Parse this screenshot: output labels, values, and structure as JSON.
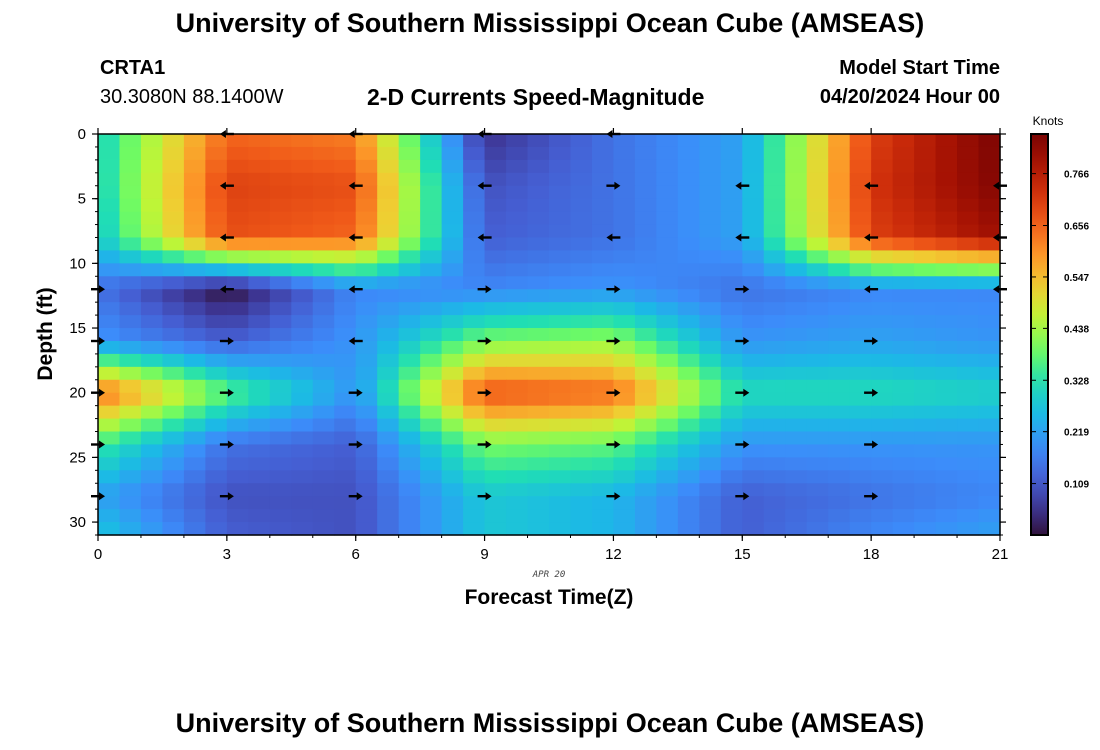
{
  "header": {
    "title": "University of Southern Mississippi Ocean Cube (AMSEAS)",
    "station": "CRTA1",
    "coords": "30.3080N  88.1400W",
    "plot_title": "2-D Currents Speed-Magnitude",
    "model_start_label": "Model Start Time",
    "model_start_value": "04/20/2024 Hour 00"
  },
  "footer": {
    "title": "University of Southern Mississippi Ocean Cube (AMSEAS)"
  },
  "chart_data": {
    "type": "heatmap",
    "title": "2-D Currents Speed-Magnitude",
    "xlabel": "Forecast Time(Z)",
    "ylabel": "Depth (ft)",
    "date_label": "APR 20",
    "x_ticks": [
      0,
      3,
      6,
      9,
      12,
      15,
      18,
      21
    ],
    "y_ticks": [
      0,
      5,
      10,
      15,
      20,
      25,
      30
    ],
    "xlim": [
      0,
      21
    ],
    "ylim": [
      0,
      31
    ],
    "colorbar": {
      "label": "Knots",
      "ticks": [
        "0.766",
        "0.656",
        "0.547",
        "0.438",
        "0.328",
        "0.219",
        "0.109"
      ],
      "tick_values": [
        0.766,
        0.656,
        0.547,
        0.438,
        0.328,
        0.219,
        0.109
      ],
      "range": [
        0,
        0.85
      ]
    },
    "time_hours": [
      0,
      3,
      6,
      9,
      12,
      15,
      18,
      21
    ],
    "depth_ft": [
      0,
      4,
      8,
      12,
      16,
      20,
      24,
      28,
      31
    ],
    "speed_knots": [
      [
        0.3,
        0.65,
        0.62,
        0.05,
        0.15,
        0.22,
        0.7,
        0.85
      ],
      [
        0.3,
        0.7,
        0.68,
        0.1,
        0.15,
        0.22,
        0.72,
        0.84
      ],
      [
        0.28,
        0.68,
        0.65,
        0.12,
        0.15,
        0.22,
        0.7,
        0.8
      ],
      [
        0.15,
        0.0,
        0.18,
        0.18,
        0.2,
        0.15,
        0.18,
        0.18
      ],
      [
        0.2,
        0.12,
        0.2,
        0.4,
        0.42,
        0.2,
        0.22,
        0.2
      ],
      [
        0.65,
        0.38,
        0.2,
        0.68,
        0.65,
        0.32,
        0.32,
        0.3
      ],
      [
        0.35,
        0.15,
        0.12,
        0.4,
        0.38,
        0.2,
        0.2,
        0.2
      ],
      [
        0.22,
        0.1,
        0.1,
        0.28,
        0.25,
        0.12,
        0.15,
        0.18
      ],
      [
        0.28,
        0.12,
        0.1,
        0.28,
        0.25,
        0.12,
        0.18,
        0.22
      ]
    ],
    "arrows": [
      {
        "t": 3,
        "d": 0,
        "dir": "W"
      },
      {
        "t": 6,
        "d": 0,
        "dir": "W"
      },
      {
        "t": 9,
        "d": 0,
        "dir": "W"
      },
      {
        "t": 12,
        "d": 0,
        "dir": "W"
      },
      {
        "t": 3,
        "d": 4,
        "dir": "W"
      },
      {
        "t": 6,
        "d": 4,
        "dir": "W"
      },
      {
        "t": 9,
        "d": 4,
        "dir": "W"
      },
      {
        "t": 12,
        "d": 4,
        "dir": "E"
      },
      {
        "t": 15,
        "d": 4,
        "dir": "W"
      },
      {
        "t": 18,
        "d": 4,
        "dir": "W"
      },
      {
        "t": 21,
        "d": 4,
        "dir": "W"
      },
      {
        "t": 3,
        "d": 8,
        "dir": "W"
      },
      {
        "t": 6,
        "d": 8,
        "dir": "W"
      },
      {
        "t": 9,
        "d": 8,
        "dir": "W"
      },
      {
        "t": 12,
        "d": 8,
        "dir": "W"
      },
      {
        "t": 15,
        "d": 8,
        "dir": "W"
      },
      {
        "t": 18,
        "d": 8,
        "dir": "W"
      },
      {
        "t": 21,
        "d": 8,
        "dir": "W"
      },
      {
        "t": 0,
        "d": 12,
        "dir": "E"
      },
      {
        "t": 3,
        "d": 12,
        "dir": "W"
      },
      {
        "t": 6,
        "d": 12,
        "dir": "W"
      },
      {
        "t": 9,
        "d": 12,
        "dir": "E"
      },
      {
        "t": 12,
        "d": 12,
        "dir": "E"
      },
      {
        "t": 15,
        "d": 12,
        "dir": "E"
      },
      {
        "t": 18,
        "d": 12,
        "dir": "W"
      },
      {
        "t": 21,
        "d": 12,
        "dir": "W"
      },
      {
        "t": 0,
        "d": 16,
        "dir": "E"
      },
      {
        "t": 3,
        "d": 16,
        "dir": "E"
      },
      {
        "t": 6,
        "d": 16,
        "dir": "W"
      },
      {
        "t": 9,
        "d": 16,
        "dir": "E"
      },
      {
        "t": 12,
        "d": 16,
        "dir": "E"
      },
      {
        "t": 15,
        "d": 16,
        "dir": "E"
      },
      {
        "t": 18,
        "d": 16,
        "dir": "E"
      },
      {
        "t": 0,
        "d": 20,
        "dir": "E"
      },
      {
        "t": 3,
        "d": 20,
        "dir": "E"
      },
      {
        "t": 6,
        "d": 20,
        "dir": "E"
      },
      {
        "t": 9,
        "d": 20,
        "dir": "E"
      },
      {
        "t": 12,
        "d": 20,
        "dir": "E"
      },
      {
        "t": 15,
        "d": 20,
        "dir": "E"
      },
      {
        "t": 18,
        "d": 20,
        "dir": "E"
      },
      {
        "t": 0,
        "d": 24,
        "dir": "E"
      },
      {
        "t": 3,
        "d": 24,
        "dir": "E"
      },
      {
        "t": 6,
        "d": 24,
        "dir": "E"
      },
      {
        "t": 9,
        "d": 24,
        "dir": "E"
      },
      {
        "t": 12,
        "d": 24,
        "dir": "E"
      },
      {
        "t": 15,
        "d": 24,
        "dir": "E"
      },
      {
        "t": 18,
        "d": 24,
        "dir": "E"
      },
      {
        "t": 0,
        "d": 28,
        "dir": "E"
      },
      {
        "t": 3,
        "d": 28,
        "dir": "E"
      },
      {
        "t": 6,
        "d": 28,
        "dir": "E"
      },
      {
        "t": 9,
        "d": 28,
        "dir": "E"
      },
      {
        "t": 12,
        "d": 28,
        "dir": "E"
      },
      {
        "t": 15,
        "d": 28,
        "dir": "E"
      },
      {
        "t": 18,
        "d": 28,
        "dir": "E"
      }
    ]
  }
}
